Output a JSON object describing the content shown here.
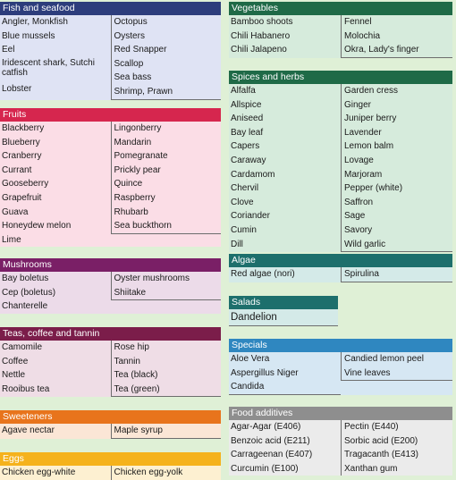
{
  "colors": {
    "navy": "#2d3d7c",
    "crimson": "#d6264e",
    "purple": "#7a1f66",
    "plum": "#7b1d4a",
    "orange": "#e8741c",
    "amber": "#f5b21c",
    "green_dark": "#1f6a47",
    "teal": "#1d6f6c",
    "blue": "#2f87c0",
    "gray": "#8e8e8e"
  },
  "fish": {
    "title": "Fish and seafood",
    "col1": [
      "Angler, Monkfish",
      "Blue mussels",
      "Eel",
      "Iridescent shark, Sutchi catfish",
      "Lobster"
    ],
    "col2": [
      "Octopus",
      "Oysters",
      "Red Snapper",
      "Scallop",
      "Sea bass",
      "Shrimp, Prawn"
    ]
  },
  "fruits": {
    "title": "Fruits",
    "col1": [
      "Blackberry",
      "Blueberry",
      "Cranberry",
      "Currant",
      "Gooseberry",
      "Grapefruit",
      "Guava",
      "Honeydew melon",
      "Lime"
    ],
    "col2": [
      "Lingonberry",
      "Mandarin",
      "Pomegranate",
      "Prickly pear",
      "Quince",
      "Raspberry",
      "Rhubarb",
      "Sea buckthorn"
    ]
  },
  "mushrooms": {
    "title": "Mushrooms",
    "col1": [
      "Bay boletus",
      "Cep (boletus)",
      "Chanterelle"
    ],
    "col2": [
      "Oyster mushrooms",
      "Shiitake"
    ]
  },
  "teas": {
    "title": "Teas, coffee and tannin",
    "col1": [
      "Camomile",
      "Coffee",
      "Nettle",
      "Rooibus tea"
    ],
    "col2": [
      "Rose hip",
      "Tannin",
      "Tea  (black)",
      "Tea (green)"
    ]
  },
  "sweeteners": {
    "title": "Sweeteners",
    "col1": [
      "Agave nectar"
    ],
    "col2": [
      "Maple syrup"
    ]
  },
  "eggs": {
    "title": "Eggs",
    "col1": [
      "Chicken egg-white"
    ],
    "col2": [
      "Chicken egg-yolk"
    ]
  },
  "vegetables": {
    "title": "Vegetables",
    "col1": [
      "Bamboo shoots",
      "Chili Habanero",
      "Chili Jalapeno"
    ],
    "col2": [
      "Fennel",
      "Molochia",
      "Okra, Lady's finger"
    ]
  },
  "spices": {
    "title": "Spices and herbs",
    "col1": [
      "Alfalfa",
      "Allspice",
      "Aniseed",
      "Bay leaf",
      "Capers",
      "Caraway",
      "Cardamom",
      "Chervil",
      "Clove",
      "Coriander",
      "Cumin",
      "Dill"
    ],
    "col2": [
      "Garden cress",
      "Ginger",
      "Juniper berry",
      "Lavender",
      "Lemon balm",
      "Lovage",
      "Marjoram",
      "Pepper (white)",
      "Saffron",
      "Sage",
      "Savory",
      "Wild garlic"
    ]
  },
  "algae": {
    "title": "Algae",
    "col1": [
      "Red algae (nori)"
    ],
    "col2": [
      "Spirulina"
    ]
  },
  "salads": {
    "title": "Salads",
    "items": [
      "Dandelion"
    ]
  },
  "specials": {
    "title": "Specials",
    "col1": [
      "Aloe Vera",
      "Aspergillus Niger",
      "Candida"
    ],
    "col2": [
      "Candied lemon peel",
      "Vine leaves"
    ]
  },
  "additives": {
    "title": "Food additives",
    "col1": [
      "Agar-Agar (E406)",
      "Benzoic acid (E211)",
      "Carrageenan (E407)",
      "Curcumin (E100)"
    ],
    "col2": [
      "Pectin (E440)",
      "Sorbic acid (E200)",
      "Tragacanth (E413)",
      "Xanthan gum"
    ]
  }
}
